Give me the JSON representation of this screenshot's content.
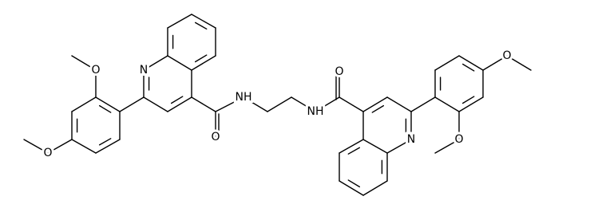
{
  "atoms": [
    {
      "label": "O"
    },
    {
      "label": "N"
    },
    {
      "label": "O"
    },
    {
      "label": "NH"
    },
    {
      "label": "O"
    },
    {
      "label": "NH"
    },
    {
      "label": "O"
    },
    {
      "label": "O"
    },
    {
      "label": "N"
    },
    {
      "label": "O"
    }
  ]
}
